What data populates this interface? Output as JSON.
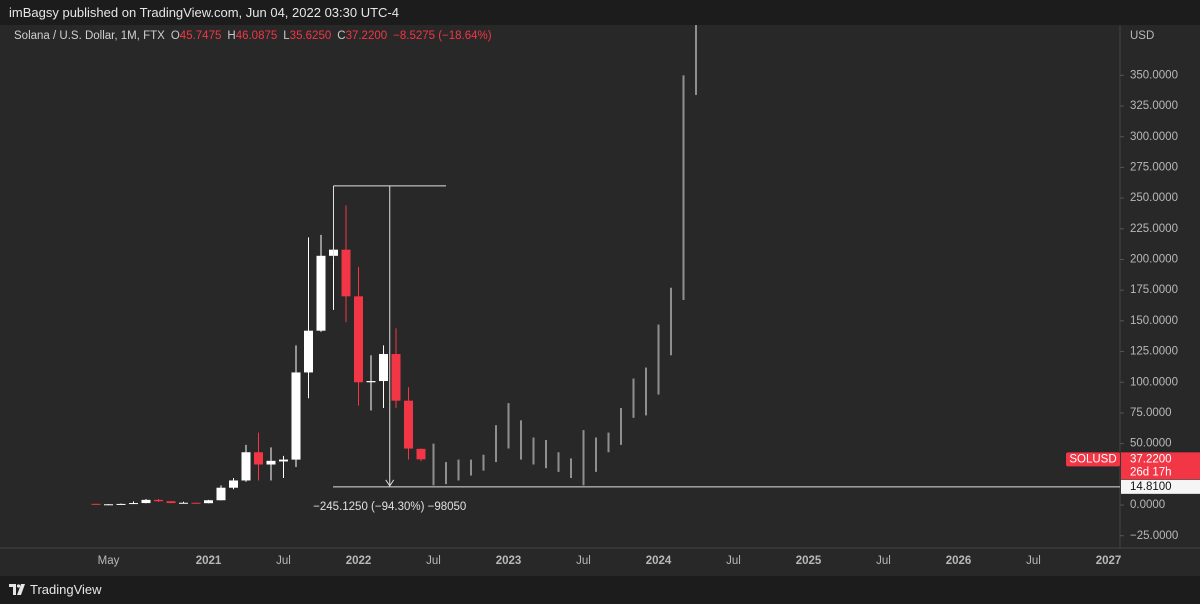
{
  "header": {
    "byline": "imBagsy published on TradingView.com, Jun 04, 2022 03:30 UTC-4",
    "symbol": "Solana / U.S. Dollar, 1M, FTX",
    "ohlc": [
      {
        "label": "O",
        "value": "45.7475"
      },
      {
        "label": "H",
        "value": "46.0875"
      },
      {
        "label": "L",
        "value": "35.6250"
      },
      {
        "label": "C",
        "value": "37.2200"
      }
    ],
    "change": "−8.5275 (−18.64%)"
  },
  "footer": {
    "brand": "TradingView"
  },
  "chart_data": {
    "type": "candlestick",
    "y_axis_label": "USD",
    "ylim": [
      -35,
      391
    ],
    "yticks": [
      {
        "value": -25,
        "label": "−25.0000"
      },
      {
        "value": 0,
        "label": "0.0000"
      },
      {
        "value": 50,
        "label": "50.0000"
      },
      {
        "value": 75,
        "label": "75.0000"
      },
      {
        "value": 100,
        "label": "100.0000"
      },
      {
        "value": 125,
        "label": "125.0000"
      },
      {
        "value": 150,
        "label": "150.0000"
      },
      {
        "value": 175,
        "label": "175.0000"
      },
      {
        "value": 200,
        "label": "200.0000"
      },
      {
        "value": 225,
        "label": "225.0000"
      },
      {
        "value": 250,
        "label": "250.0000"
      },
      {
        "value": 275,
        "label": "275.0000"
      },
      {
        "value": 300,
        "label": "300.0000"
      },
      {
        "value": 325,
        "label": "325.0000"
      },
      {
        "value": 350,
        "label": "350.0000"
      }
    ],
    "xticks": [
      {
        "value": "2020-05",
        "label": "May"
      },
      {
        "value": "2021-01",
        "label": "2021"
      },
      {
        "value": "2021-07",
        "label": "Jul"
      },
      {
        "value": "2022-01",
        "label": "2022"
      },
      {
        "value": "2022-07",
        "label": "Jul"
      },
      {
        "value": "2023-01",
        "label": "2023"
      },
      {
        "value": "2023-07",
        "label": "Jul"
      },
      {
        "value": "2024-01",
        "label": "2024"
      },
      {
        "value": "2024-07",
        "label": "Jul"
      },
      {
        "value": "2025-01",
        "label": "2025"
      },
      {
        "value": "2025-07",
        "label": "Jul"
      },
      {
        "value": "2026-01",
        "label": "2026"
      },
      {
        "value": "2026-07",
        "label": "Jul"
      },
      {
        "value": "2027-01",
        "label": "2027"
      }
    ],
    "up_color": "#ffffff",
    "down_color": "#f23645",
    "projection_color": "#8f8f8f",
    "x": [
      "2020-04",
      "2020-05",
      "2020-06",
      "2020-07",
      "2020-08",
      "2020-09",
      "2020-10",
      "2020-11",
      "2020-12",
      "2021-01",
      "2021-02",
      "2021-03",
      "2021-04",
      "2021-05",
      "2021-06",
      "2021-07",
      "2021-08",
      "2021-09",
      "2021-10",
      "2021-11",
      "2021-12",
      "2022-01",
      "2022-02",
      "2022-03",
      "2022-04",
      "2022-05",
      "2022-06"
    ],
    "open": [
      0.95,
      0.6,
      0.62,
      0.9,
      1.6,
      4.2,
      3.1,
      1.6,
      1.85,
      1.5,
      3.9,
      14.1,
      20,
      43,
      33,
      35.5,
      37,
      108,
      142,
      203,
      208,
      170,
      100,
      101,
      123,
      85,
      45.7475
    ],
    "high": [
      1.0,
      0.8,
      1.2,
      3.0,
      4.9,
      4.9,
      3.2,
      2.7,
      2.0,
      4.2,
      16,
      22,
      49,
      59,
      47,
      40,
      130,
      218,
      220,
      224,
      244,
      194,
      122,
      130,
      144,
      96,
      46.0875
    ],
    "low": [
      0.5,
      0.5,
      0.5,
      0.9,
      1.5,
      2.5,
      1.4,
      1.2,
      1.3,
      1.4,
      3.8,
      12.9,
      19,
      20,
      20,
      22,
      31,
      87,
      141,
      159,
      149,
      81,
      77,
      79,
      79,
      37,
      35.625
    ],
    "close": [
      0.6,
      0.62,
      0.9,
      1.6,
      4.2,
      3.1,
      1.6,
      1.85,
      1.5,
      3.9,
      14.1,
      20,
      43,
      33,
      36,
      37,
      108,
      142,
      203,
      208,
      170,
      100,
      101,
      123,
      85,
      46,
      37.22
    ],
    "projection": {
      "x": [
        "2022-07",
        "2022-08",
        "2022-09",
        "2022-10",
        "2022-11",
        "2022-12",
        "2023-01",
        "2023-02",
        "2023-03",
        "2023-04",
        "2023-05",
        "2023-06",
        "2023-07",
        "2023-08",
        "2023-09",
        "2023-10",
        "2023-11",
        "2023-12",
        "2024-01",
        "2024-02",
        "2024-03",
        "2024-04"
      ],
      "high": [
        50,
        35,
        37,
        37,
        41,
        65,
        83,
        69,
        55,
        53,
        43,
        38,
        61,
        55,
        59,
        79,
        103,
        112,
        147,
        177,
        350,
        395
      ],
      "low": [
        16,
        17,
        20,
        24,
        28,
        35,
        46,
        37,
        33,
        30,
        27,
        22,
        16,
        27,
        43,
        49,
        71,
        73,
        90,
        122,
        167,
        334
      ]
    },
    "hline": {
      "value": 14.81,
      "label": "14.8100"
    },
    "measure": {
      "high": 259.935,
      "from": "2021-11",
      "to": "2022-08",
      "label": "−245.1250 (−94.30%) −98050"
    },
    "price_label": {
      "symbol": "SOLUSD",
      "value": 37.22,
      "label": "37.2200",
      "countdown": "26d 17h"
    }
  }
}
